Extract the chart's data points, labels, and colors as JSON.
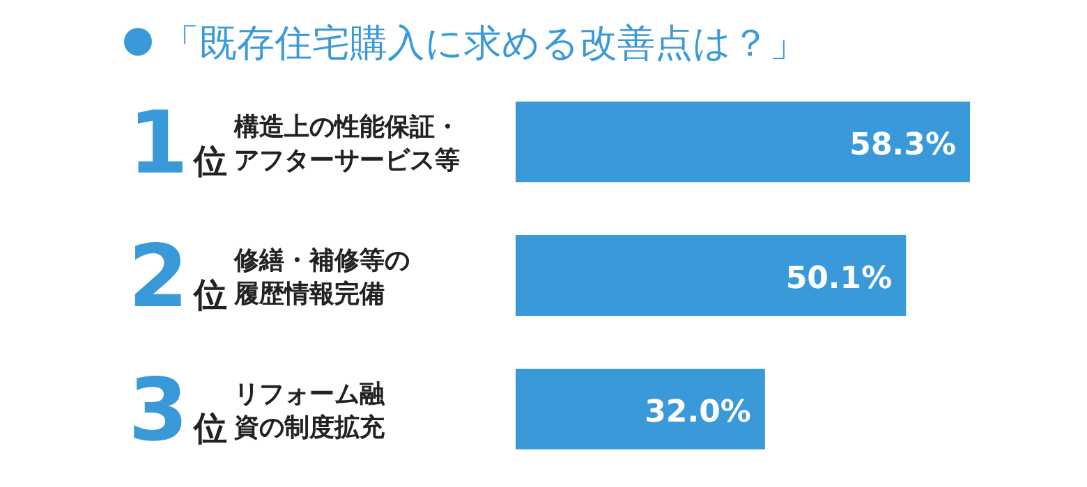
{
  "chart_data": {
    "type": "bar",
    "orientation": "horizontal",
    "title": "「既存住宅購入に求める改善点は？」",
    "categories": [
      "1位構造上の性能保証・アフターサービス等",
      "2位修繕・補修等の履歴情報完備",
      "3位リフォーム融資の制度拡充"
    ],
    "values": [
      58.3,
      50.1,
      32.0
    ],
    "value_labels": [
      "58.3%",
      "50.1%",
      "32.0%"
    ],
    "color": "#3a9ad9"
  }
}
